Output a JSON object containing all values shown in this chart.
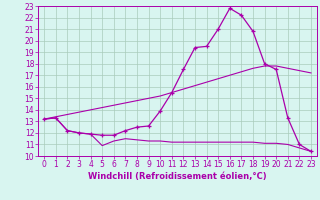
{
  "xlabel": "Windchill (Refroidissement éolien,°C)",
  "bg_color": "#d8f5f0",
  "grid_color": "#aaccbb",
  "line_color": "#aa00aa",
  "xlim": [
    -0.5,
    23.5
  ],
  "ylim": [
    10,
    23
  ],
  "xticks": [
    0,
    1,
    2,
    3,
    4,
    5,
    6,
    7,
    8,
    9,
    10,
    11,
    12,
    13,
    14,
    15,
    16,
    17,
    18,
    19,
    20,
    21,
    22,
    23
  ],
  "yticks": [
    10,
    11,
    12,
    13,
    14,
    15,
    16,
    17,
    18,
    19,
    20,
    21,
    22,
    23
  ],
  "hours": [
    0,
    1,
    2,
    3,
    4,
    5,
    6,
    7,
    8,
    9,
    10,
    11,
    12,
    13,
    14,
    15,
    16,
    17,
    18,
    19,
    20,
    21,
    22,
    23
  ],
  "temp_curve": [
    13.2,
    13.3,
    12.2,
    12.0,
    11.9,
    11.8,
    11.8,
    12.2,
    12.5,
    12.6,
    13.9,
    15.5,
    17.5,
    19.4,
    19.5,
    21.0,
    22.8,
    22.2,
    20.8,
    18.0,
    17.5,
    13.3,
    11.0,
    10.4
  ],
  "windchill_curve": [
    13.2,
    13.3,
    12.2,
    12.0,
    11.9,
    10.9,
    11.3,
    11.5,
    11.4,
    11.3,
    11.3,
    11.2,
    11.2,
    11.2,
    11.2,
    11.2,
    11.2,
    11.2,
    11.2,
    11.1,
    11.1,
    11.0,
    10.7,
    10.4
  ],
  "trend_line": [
    13.2,
    13.4,
    13.6,
    13.8,
    14.0,
    14.2,
    14.4,
    14.6,
    14.8,
    15.0,
    15.2,
    15.5,
    15.8,
    16.1,
    16.4,
    16.7,
    17.0,
    17.3,
    17.6,
    17.8,
    17.8,
    17.6,
    17.4,
    17.2
  ],
  "tick_fontsize": 5.5,
  "xlabel_fontsize": 6.0
}
